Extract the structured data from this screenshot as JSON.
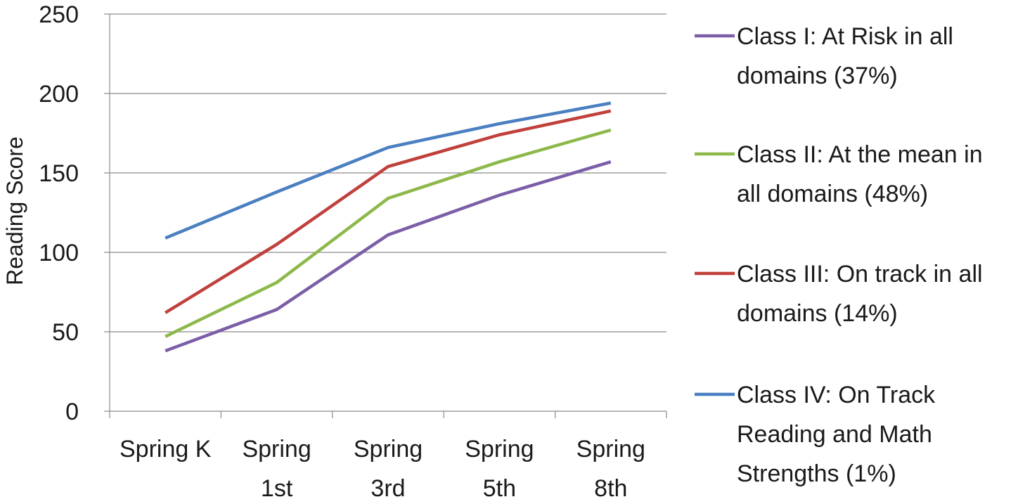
{
  "chart_data": {
    "type": "line",
    "title": "",
    "xlabel": "",
    "ylabel": "Reading Score",
    "ylim": [
      0,
      250
    ],
    "yticks": [
      0,
      50,
      100,
      150,
      200,
      250
    ],
    "grid": true,
    "legend_position": "right",
    "categories": [
      [
        "Spring K"
      ],
      [
        "Spring",
        "1st"
      ],
      [
        "Spring",
        "3rd"
      ],
      [
        "Spring",
        "5th"
      ],
      [
        "Spring",
        "8th"
      ]
    ],
    "series": [
      {
        "name": [
          "Class I:  At Risk in all",
          "domains (37%)"
        ],
        "color": "#7b5ea7",
        "values": [
          38,
          64,
          111,
          136,
          157
        ]
      },
      {
        "name": [
          "Class II:  At the mean in",
          "all domains (48%)"
        ],
        "color": "#8db84a",
        "values": [
          47,
          81,
          134,
          157,
          177
        ]
      },
      {
        "name": [
          "Class III:  On track in all",
          "domains (14%)"
        ],
        "color": "#c0403c",
        "values": [
          62,
          105,
          154,
          174,
          189
        ]
      },
      {
        "name": [
          "Class IV:  On Track",
          "Reading and Math",
          "Strengths (1%)"
        ],
        "color": "#4a7fc1",
        "values": [
          109,
          138,
          166,
          181,
          194
        ]
      }
    ]
  }
}
